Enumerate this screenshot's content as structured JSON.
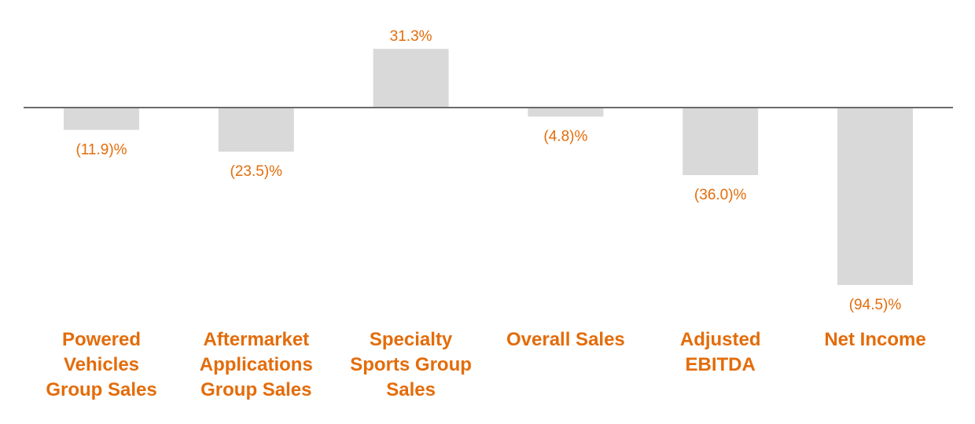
{
  "chart_data": {
    "type": "bar",
    "categories": [
      [
        "Powered",
        "Vehicles",
        "Group Sales"
      ],
      [
        "Aftermarket",
        "Applications",
        "Group Sales"
      ],
      [
        "Specialty",
        "Sports Group",
        "Sales"
      ],
      [
        "Overall Sales"
      ],
      [
        "Adjusted",
        "EBITDA"
      ],
      [
        "Net Income"
      ]
    ],
    "values": [
      -11.9,
      -23.5,
      31.3,
      -4.8,
      -36.0,
      -94.5
    ],
    "value_labels": [
      "(11.9)%",
      "(23.5)%",
      "31.3%",
      "(4.8)%",
      "(36.0)%",
      "(94.5)%"
    ],
    "unit": "%",
    "grid": false,
    "legend": "none",
    "colors": {
      "bar": "#d9d9d9",
      "label": "#e36c0a",
      "baseline": "#6b6b6b"
    }
  }
}
